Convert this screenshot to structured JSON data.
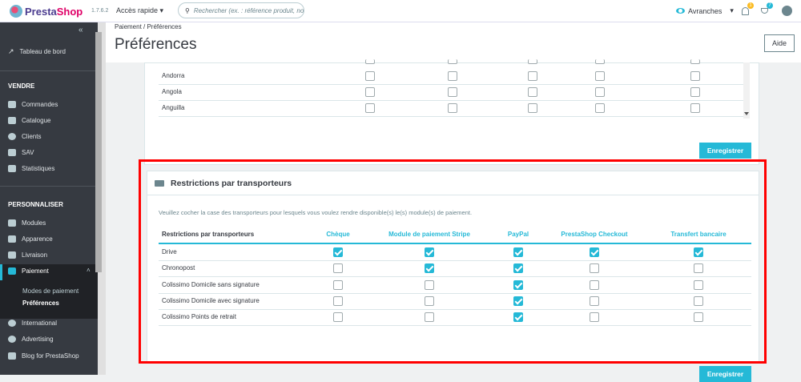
{
  "header": {
    "brand_a": "Presta",
    "brand_b": "Shop",
    "version": "1.7.6.2",
    "quick_access": "Accès rapide",
    "search_placeholder": "Rechercher (ex. : référence produit, nom",
    "shop": "Avranches",
    "notif_count": "1",
    "orders_count": "7"
  },
  "sidebar": {
    "dashboard": "Tableau de bord",
    "sections": [
      {
        "title": "VENDRE",
        "items": [
          "Commandes",
          "Catalogue",
          "Clients",
          "SAV",
          "Statistiques"
        ]
      },
      {
        "title": "PERSONNALISER",
        "items": [
          "Modules",
          "Apparence",
          "Livraison",
          "Paiement"
        ]
      }
    ],
    "submenu": [
      "Modes de paiement",
      "Préférences"
    ],
    "more": [
      "International",
      "Advertising",
      "Blog for PrestaShop"
    ]
  },
  "page": {
    "breadcrumb": [
      "Paiement",
      "Préférences"
    ],
    "title": "Préférences",
    "help": "Aide",
    "save": "Enregistrer"
  },
  "countries": [
    {
      "name": "Andorra"
    },
    {
      "name": "Angola"
    },
    {
      "name": "Anguilla"
    }
  ],
  "carriers_panel": {
    "title": "Restrictions par transporteurs",
    "description": "Veuillez cocher la case des transporteurs pour lesquels vous voulez rendre disponible(s) le(s) module(s) de paiement.",
    "columns": [
      "Restrictions par transporteurs",
      "Chèque",
      "Module de paiement Stripe",
      "PayPal",
      "PrestaShop Checkout",
      "Transfert bancaire"
    ],
    "rows": [
      {
        "name": "Drive",
        "checks": [
          true,
          true,
          true,
          true,
          true
        ]
      },
      {
        "name": "Chronopost",
        "checks": [
          false,
          true,
          true,
          false,
          false
        ]
      },
      {
        "name": "Colissimo Domicile sans signature",
        "checks": [
          false,
          false,
          true,
          false,
          false
        ]
      },
      {
        "name": "Colissimo Domicile avec signature",
        "checks": [
          false,
          false,
          true,
          false,
          false
        ]
      },
      {
        "name": "Colissimo Points de retrait",
        "checks": [
          false,
          false,
          true,
          false,
          false
        ]
      }
    ]
  },
  "colors": {
    "accent": "#25b9d7",
    "sidebar": "#363a41",
    "highlight": "#ff0000"
  }
}
